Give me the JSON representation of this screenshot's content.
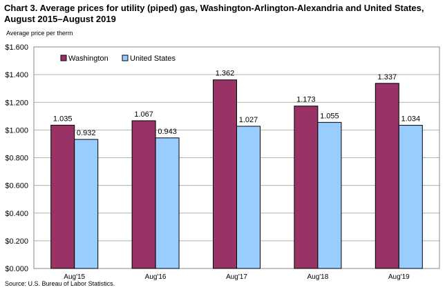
{
  "title_line1": "Chart 3. Average prices for utility (piped) gas, Washington-Arlington-Alexandria and United States,",
  "title_line2": "August 2015–August 2019",
  "source": "Source: U.S. Bureau of Labor Statistics.",
  "chart_data": {
    "type": "bar",
    "title": "Chart 3. Average prices for utility (piped) gas, Washington-Arlington-Alexandria and United States, August 2015–August 2019",
    "ylabel": "Average price per therm",
    "xlabel": "",
    "categories": [
      "Aug'15",
      "Aug'16",
      "Aug'17",
      "Aug'18",
      "Aug'19"
    ],
    "series": [
      {
        "name": "Washington",
        "color": "#993366",
        "values": [
          1.035,
          1.067,
          1.362,
          1.173,
          1.337
        ],
        "labels": [
          "1.035",
          "1.067",
          "1.362",
          "1.173",
          "1.337"
        ]
      },
      {
        "name": "United States",
        "color": "#99CCFF",
        "values": [
          0.932,
          0.943,
          1.027,
          1.055,
          1.034
        ],
        "labels": [
          "0.932",
          "0.943",
          "1.027",
          "1.055",
          "1.034"
        ]
      }
    ],
    "ylim": [
      0,
      1.6
    ],
    "yticks": [
      0,
      0.2,
      0.4,
      0.6,
      0.8,
      1.0,
      1.2,
      1.4,
      1.6
    ],
    "ytick_labels": [
      "$0.000",
      "$0.200",
      "$0.400",
      "$0.600",
      "$0.800",
      "$1.000",
      "$1.200",
      "$1.400",
      "$1.600"
    ],
    "grid": true,
    "legend": "top-left"
  }
}
